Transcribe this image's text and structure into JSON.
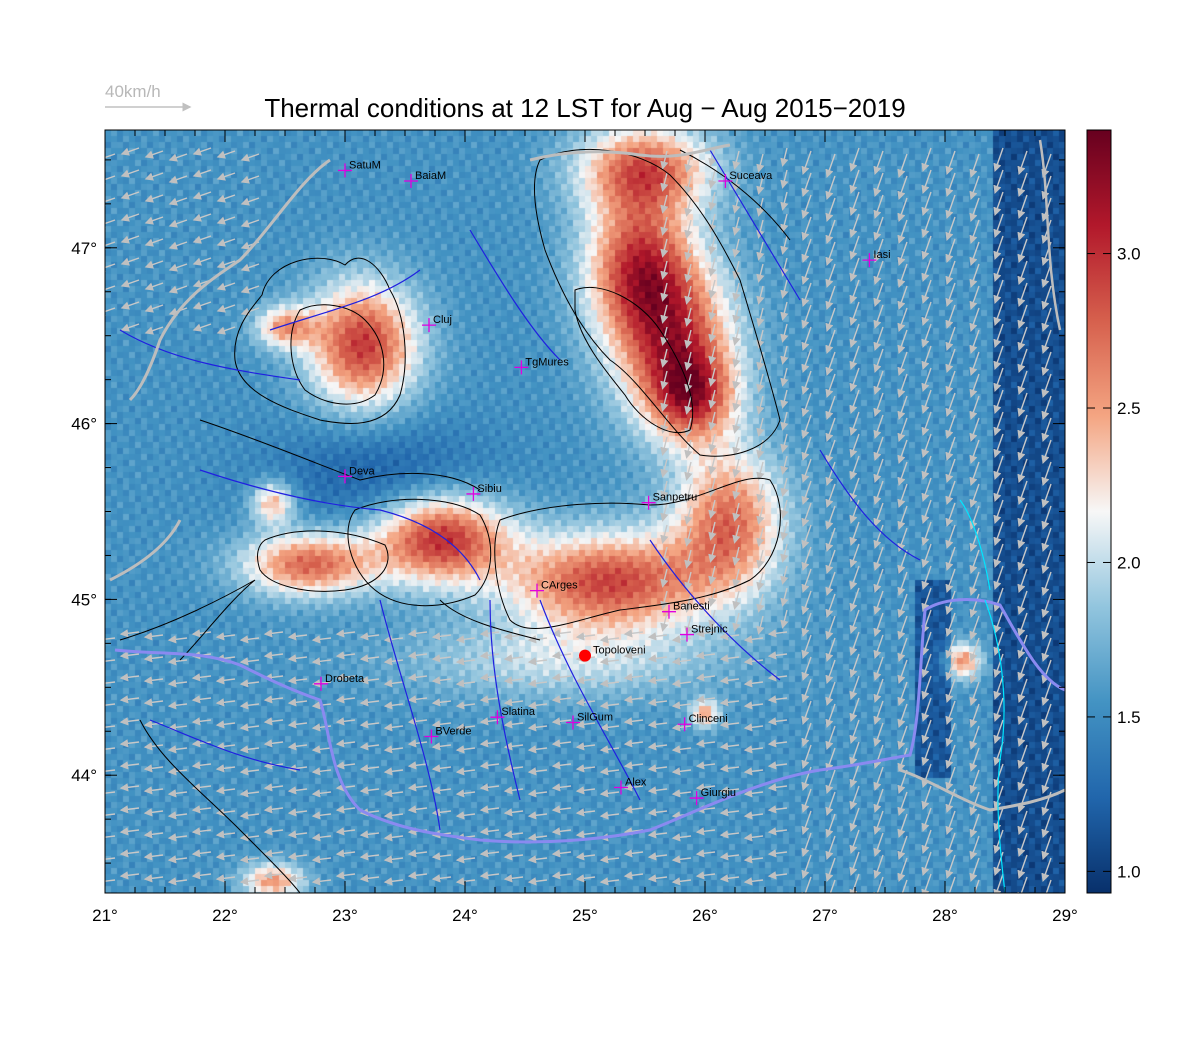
{
  "title": "Thermal conditions at 12 LST for Aug − Aug  2015−2019",
  "wind_scale": {
    "label": "40km/h"
  },
  "lon_ticks": [
    {
      "lon": 21,
      "label": "21°"
    },
    {
      "lon": 22,
      "label": "22°"
    },
    {
      "lon": 23,
      "label": "23°"
    },
    {
      "lon": 24,
      "label": "24°"
    },
    {
      "lon": 25,
      "label": "25°"
    },
    {
      "lon": 26,
      "label": "26°"
    },
    {
      "lon": 27,
      "label": "27°"
    },
    {
      "lon": 28,
      "label": "28°"
    },
    {
      "lon": 29,
      "label": "29°"
    }
  ],
  "lat_ticks": [
    {
      "lat": 47,
      "label": "47°"
    },
    {
      "lat": 46,
      "label": "46°"
    },
    {
      "lat": 45,
      "label": "45°"
    },
    {
      "lat": 44,
      "label": "44°"
    }
  ],
  "colorbar": {
    "min": 0.93,
    "max": 3.4,
    "ticks": [
      {
        "value": 1.0,
        "label": "1.0"
      },
      {
        "value": 1.5,
        "label": "1.5"
      },
      {
        "value": 2.0,
        "label": "2.0"
      },
      {
        "value": 2.5,
        "label": "2.5"
      },
      {
        "value": 3.0,
        "label": "3.0"
      }
    ],
    "colors": [
      "#08306b",
      "#2166ac",
      "#4393c3",
      "#92c5de",
      "#f7f7f7",
      "#f4a582",
      "#d6604d",
      "#b2182b",
      "#67001f"
    ]
  },
  "extent": {
    "lon_min": 21,
    "lon_max": 29,
    "lat_min": 43.33,
    "lat_max": 47.67
  },
  "cities": [
    {
      "name": "SatuM",
      "lon": 23.0,
      "lat": 47.44
    },
    {
      "name": "BaiaM",
      "lon": 23.55,
      "lat": 47.38
    },
    {
      "name": "Suceava",
      "lon": 26.17,
      "lat": 47.38
    },
    {
      "name": "Iasi",
      "lon": 27.37,
      "lat": 46.93
    },
    {
      "name": "Cluj",
      "lon": 23.7,
      "lat": 46.56
    },
    {
      "name": "TgMures",
      "lon": 24.47,
      "lat": 46.32
    },
    {
      "name": "Deva",
      "lon": 23.0,
      "lat": 45.7
    },
    {
      "name": "Sibiu",
      "lon": 24.07,
      "lat": 45.6
    },
    {
      "name": "Sanpetru",
      "lon": 25.53,
      "lat": 45.55
    },
    {
      "name": "CArges",
      "lon": 24.6,
      "lat": 45.05
    },
    {
      "name": "Banesti",
      "lon": 25.7,
      "lat": 44.93
    },
    {
      "name": "Strejnic",
      "lon": 25.85,
      "lat": 44.8
    },
    {
      "name": "Drobeta",
      "lon": 22.8,
      "lat": 44.52
    },
    {
      "name": "Slatina",
      "lon": 24.27,
      "lat": 44.33
    },
    {
      "name": "SilGum",
      "lon": 24.9,
      "lat": 44.3
    },
    {
      "name": "Clinceni",
      "lon": 25.83,
      "lat": 44.29
    },
    {
      "name": "BVerde",
      "lon": 23.72,
      "lat": 44.22
    },
    {
      "name": "Alex",
      "lon": 25.3,
      "lat": 43.93
    },
    {
      "name": "Giurgiu",
      "lon": 25.93,
      "lat": 43.87
    }
  ],
  "highlight_site": {
    "name": "Topoloveni",
    "lon": 25.0,
    "lat": 44.68
  },
  "field_hotspots": [
    {
      "lon": 25.5,
      "lat": 47.45,
      "rlon": 0.55,
      "rlat": 0.25,
      "amp": 1.2
    },
    {
      "lon": 25.45,
      "lat": 46.9,
      "rlon": 0.45,
      "rlat": 0.4,
      "amp": 1.3
    },
    {
      "lon": 25.75,
      "lat": 46.45,
      "rlon": 0.5,
      "rlat": 0.45,
      "amp": 1.3
    },
    {
      "lon": 25.9,
      "lat": 46.15,
      "rlon": 0.35,
      "rlat": 0.25,
      "amp": 1.0
    },
    {
      "lon": 23.15,
      "lat": 46.45,
      "rlon": 0.45,
      "rlat": 0.35,
      "amp": 1.4
    },
    {
      "lon": 22.5,
      "lat": 46.55,
      "rlon": 0.25,
      "rlat": 0.12,
      "amp": 0.9
    },
    {
      "lon": 23.8,
      "lat": 45.35,
      "rlon": 0.55,
      "rlat": 0.25,
      "amp": 1.45
    },
    {
      "lon": 22.7,
      "lat": 45.2,
      "rlon": 0.55,
      "rlat": 0.18,
      "amp": 1.2
    },
    {
      "lon": 22.4,
      "lat": 45.55,
      "rlon": 0.18,
      "rlat": 0.12,
      "amp": 0.9
    },
    {
      "lon": 25.2,
      "lat": 45.1,
      "rlon": 0.85,
      "rlat": 0.28,
      "amp": 1.35
    },
    {
      "lon": 26.2,
      "lat": 45.45,
      "rlon": 0.45,
      "rlat": 0.4,
      "amp": 1.15
    },
    {
      "lon": 26.0,
      "lat": 44.35,
      "rlon": 0.12,
      "rlat": 0.08,
      "amp": 0.9
    },
    {
      "lon": 28.15,
      "lat": 44.65,
      "rlon": 0.15,
      "rlat": 0.1,
      "amp": 1.0
    },
    {
      "lon": 24.8,
      "lat": 44.65,
      "rlon": 1.3,
      "rlat": 0.22,
      "amp": 0.45
    },
    {
      "lon": 22.4,
      "lat": 43.4,
      "rlon": 0.25,
      "rlat": 0.1,
      "amp": 1.0
    }
  ]
}
